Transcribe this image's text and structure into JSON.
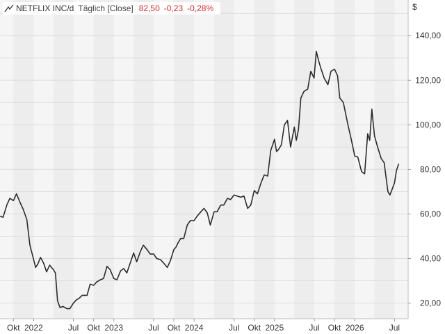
{
  "legend": {
    "symbol": "NETFLIX INC/d",
    "interval": "Täglich [Close]",
    "last": "82,50",
    "change": "-0,23",
    "change_pct": "-0,28%",
    "negative_color": "#d32f2f"
  },
  "currency_symbol": "$",
  "chart_data": {
    "type": "line",
    "title": "",
    "xlabel": "",
    "ylabel": "$",
    "ylim": [
      13,
      156
    ],
    "y_ticks": [
      "20,00",
      "40,00",
      "60,00",
      "80,00",
      "100,00",
      "120,00",
      "140,00"
    ],
    "y_tick_values": [
      20,
      40,
      60,
      80,
      100,
      120,
      140
    ],
    "x_ticks": [
      "Okt",
      "2022",
      "Jul",
      "Okt",
      "2023",
      "Jul",
      "Okt",
      "2024",
      "Jul",
      "Okt",
      "2025",
      "Jul",
      "Okt",
      "2026",
      "Jul"
    ],
    "x_range": [
      "2021-08-01",
      "2026-09-01"
    ],
    "x_tick_dates": [
      "2021-10-01",
      "2022-01-01",
      "2022-07-01",
      "2022-10-01",
      "2023-01-01",
      "2023-07-01",
      "2023-10-01",
      "2024-01-01",
      "2024-07-01",
      "2024-10-01",
      "2025-01-01",
      "2025-07-01",
      "2025-10-01",
      "2026-01-01",
      "2026-07-01"
    ],
    "line_color": "#2b2b2b",
    "background_bands": [
      "#f5f5f5",
      "#ededed"
    ],
    "grid": true,
    "series": [
      {
        "x": [
          "2021-08-01",
          "2021-08-15",
          "2021-09-01",
          "2021-09-15",
          "2021-10-01",
          "2021-10-15",
          "2021-11-01",
          "2021-11-15",
          "2021-12-01",
          "2021-12-15",
          "2022-01-01",
          "2022-01-10",
          "2022-01-20",
          "2022-02-01",
          "2022-02-15",
          "2022-03-01",
          "2022-03-15",
          "2022-04-01",
          "2022-04-10",
          "2022-04-20",
          "2022-05-01",
          "2022-05-15",
          "2022-06-01",
          "2022-06-15",
          "2022-07-01",
          "2022-07-15",
          "2022-07-25",
          "2022-08-10",
          "2022-09-01",
          "2022-09-15",
          "2022-10-01",
          "2022-10-15",
          "2022-11-01",
          "2022-11-15",
          "2022-12-01",
          "2022-12-15",
          "2023-01-01",
          "2023-01-15",
          "2023-02-01",
          "2023-02-15",
          "2023-03-01",
          "2023-03-15",
          "2023-04-01",
          "2023-04-15",
          "2023-05-01",
          "2023-05-15",
          "2023-06-01",
          "2023-06-15",
          "2023-07-01",
          "2023-07-15",
          "2023-08-01",
          "2023-08-15",
          "2023-09-01",
          "2023-09-15",
          "2023-10-01",
          "2023-10-10",
          "2023-10-20",
          "2023-11-01",
          "2023-11-15",
          "2023-12-01",
          "2023-12-15",
          "2024-01-01",
          "2024-01-15",
          "2024-02-01",
          "2024-02-15",
          "2024-03-01",
          "2024-03-15",
          "2024-04-01",
          "2024-04-15",
          "2024-05-01",
          "2024-05-15",
          "2024-06-01",
          "2024-06-15",
          "2024-07-01",
          "2024-07-15",
          "2024-08-01",
          "2024-08-15",
          "2024-09-01",
          "2024-09-15",
          "2024-10-01",
          "2024-10-15",
          "2024-11-01",
          "2024-11-15",
          "2024-12-01",
          "2024-12-15",
          "2025-01-01",
          "2025-01-10",
          "2025-01-20",
          "2025-02-01",
          "2025-02-15",
          "2025-03-01",
          "2025-03-15",
          "2025-04-01",
          "2025-04-10",
          "2025-04-20",
          "2025-05-01",
          "2025-05-15",
          "2025-06-01",
          "2025-06-15",
          "2025-06-30",
          "2025-07-10",
          "2025-07-20",
          "2025-08-01",
          "2025-08-15",
          "2025-09-01",
          "2025-09-15",
          "2025-10-01",
          "2025-10-15",
          "2025-10-25",
          "2025-11-10",
          "2025-12-01",
          "2025-12-15",
          "2026-01-01",
          "2026-01-15",
          "2026-02-01",
          "2026-02-15",
          "2026-03-01",
          "2026-03-10",
          "2026-03-20",
          "2026-04-01",
          "2026-04-15",
          "2026-05-01",
          "2026-05-15",
          "2026-06-01",
          "2026-06-10",
          "2026-06-20",
          "2026-07-01",
          "2026-07-10",
          "2026-07-20"
        ],
        "values": [
          59.0,
          58.5,
          64.0,
          67.0,
          66.0,
          69.0,
          65.0,
          62.0,
          57.5,
          46.0,
          39.5,
          36.0,
          37.5,
          40.5,
          38.0,
          34.0,
          37.0,
          35.0,
          33.5,
          21.0,
          18.0,
          18.5,
          17.5,
          17.5,
          20.0,
          21.5,
          22.0,
          23.5,
          23.5,
          28.5,
          28.0,
          29.5,
          30.5,
          31.0,
          36.5,
          35.0,
          31.0,
          30.5,
          34.5,
          35.5,
          33.5,
          37.5,
          42.5,
          38.5,
          43.0,
          46.0,
          44.0,
          42.0,
          42.0,
          40.0,
          39.5,
          38.0,
          36.0,
          39.0,
          44.0,
          45.0,
          47.0,
          49.0,
          49.0,
          55.0,
          57.0,
          57.0,
          59.0,
          61.0,
          62.5,
          60.5,
          55.0,
          61.0,
          61.0,
          64.0,
          64.0,
          67.0,
          66.5,
          68.5,
          68.0,
          67.5,
          68.0,
          62.5,
          64.0,
          70.5,
          69.0,
          74.0,
          77.5,
          77.0,
          88.5,
          93.5,
          88.0,
          89.0,
          91.0,
          100.0,
          102.0,
          90.0,
          99.0,
          93.0,
          98.0,
          112.0,
          115.0,
          116.0,
          124.0,
          121.0,
          133.0,
          129.0,
          125.0,
          121.0,
          118.0,
          124.0,
          125.0,
          122.0,
          112.0,
          110.0,
          100.0,
          94.0,
          86.0,
          85.5,
          79.0,
          78.0,
          96.0,
          93.0,
          107.0,
          95.0,
          90.0,
          85.0,
          83.0,
          70.0,
          68.5,
          71.0,
          74.0,
          79.5,
          82.5
        ]
      }
    ]
  }
}
